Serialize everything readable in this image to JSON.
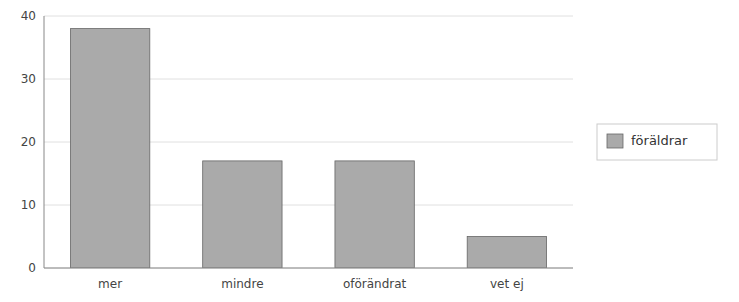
{
  "chart_data": {
    "type": "bar",
    "categories": [
      "mer",
      "mindre",
      "oförändrat",
      "vet ej"
    ],
    "series": [
      {
        "name": "föräldrar",
        "color": "#aaaaaa",
        "values": [
          38,
          17,
          17,
          5
        ]
      }
    ],
    "ylim": [
      0,
      40
    ],
    "yticks": [
      0,
      10,
      20,
      30,
      40
    ],
    "grid": true,
    "legend": "right"
  }
}
